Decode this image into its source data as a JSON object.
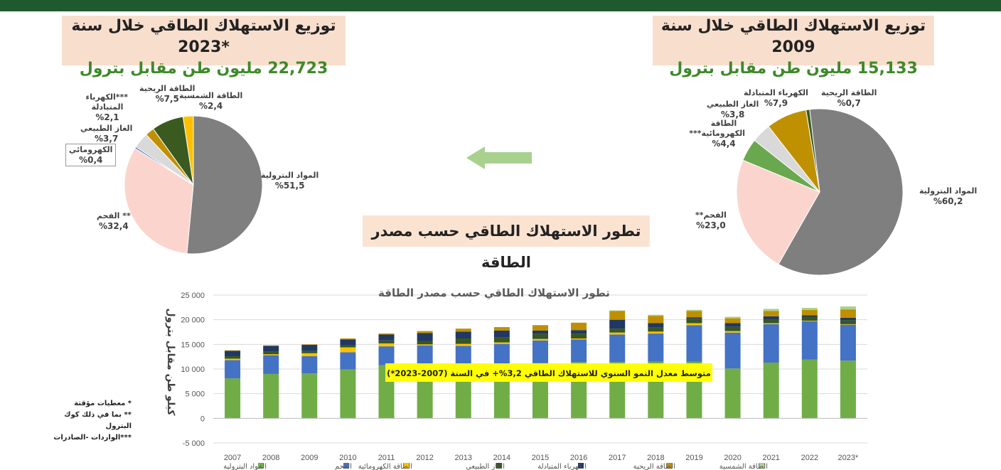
{
  "header": {
    "box_2023": {
      "line1": "توزيع الاستهلاك الطاقي خلال سنة *2023",
      "line2": "22,723 مليون طن مقابل بترول"
    },
    "box_2009": {
      "line1": "توزيع الاستهلاك الطاقي خلال سنة 2009",
      "line2": "15,133 مليون طن مقابل بترول"
    },
    "main_title": "تطور الاستهلاك الطاقي حسب مصدر الطاقة"
  },
  "notes": [
    "* معطيات مؤقتة",
    "** بما في ذلك كوك البترول",
    "***الواردات -الصادرات"
  ],
  "colors": {
    "petroleum": "#70ad47",
    "coal": "#4472c4",
    "hydro": "#ffc000",
    "gas": "#375623",
    "electricity": "#203864",
    "wind": "#bf8f00",
    "solar": "#a9d18e",
    "arrow": "#a9d18e",
    "pie_petroleum": "#7f7f7f",
    "pie_coal": "#fbd5cd",
    "pie_hydro": "#4472c4",
    "pie_gas": "#d9d9d9",
    "pie_electricity": "#bf9000",
    "pie_wind": "#3a5a1f",
    "pie_solar": "#ffc000",
    "pie_2009_hydro": "#6aa84f"
  },
  "chart_data": [
    {
      "type": "pie",
      "title": "توزيع الاستهلاك الطاقي خلال سنة *2023",
      "slices": [
        {
          "label": "المواد البترولية",
          "value": 51.5,
          "value_label": "%51,5"
        },
        {
          "label": "** الفحم",
          "value": 32.4,
          "value_label": "%32,4"
        },
        {
          "label": "الكهرومائي",
          "value": 0.4,
          "value_label": "%0,4"
        },
        {
          "label": "الغاز الطبيعي",
          "value": 3.7,
          "value_label": "%3,7"
        },
        {
          "label": "***الكهرباء المتبادلة",
          "value": 2.1,
          "value_label": "%2,1"
        },
        {
          "label": "الطاقة الريحية",
          "value": 7.5,
          "value_label": "%7,5"
        },
        {
          "label": "الطاقة الشمسية",
          "value": 2.4,
          "value_label": "%2,4"
        }
      ]
    },
    {
      "type": "pie",
      "title": "توزيع الاستهلاك الطاقي خلال سنة 2009",
      "slices": [
        {
          "label": "المواد البترولية",
          "value": 60.2,
          "value_label": "%60,2"
        },
        {
          "label": "الفحم**",
          "value": 23.0,
          "value_label": "%23,0"
        },
        {
          "label": "الطاقة الكهرومائية***",
          "value": 4.4,
          "value_label": "%4,4"
        },
        {
          "label": "الغاز الطبيعي",
          "value": 3.8,
          "value_label": "%3,8"
        },
        {
          "label": "الكهرباء المتبادلة",
          "value": 7.9,
          "value_label": "%7,9"
        },
        {
          "label": "الطاقة الريحية",
          "value": 0.7,
          "value_label": "%0,7"
        }
      ]
    },
    {
      "type": "bar",
      "stacked": true,
      "title": "تطور الاستهلاك الطاقي حسب مصدر الطاقة",
      "ylabel": "كيلو طن مقابل بترول",
      "ylim": [
        -5000,
        25000
      ],
      "yticks": [
        "-5 000",
        "0",
        "5 000",
        "10 000",
        "15 000",
        "20 000",
        "25 000"
      ],
      "ytick_values": [
        -5000,
        0,
        5000,
        10000,
        15000,
        20000,
        25000
      ],
      "grid": true,
      "legend": "bottom",
      "annotation": "متوسط معدل النمو السنوي للاستهلاك الطاقي 3,2%+ في السنة (2007-2023*)",
      "categories": [
        "2007",
        "2008",
        "2009",
        "2010",
        "2011",
        "2012",
        "2013",
        "2014",
        "2015",
        "2016",
        "2017",
        "2018",
        "2019",
        "2020",
        "2021",
        "2022",
        "2023*"
      ],
      "series": [
        {
          "name": "المواد البترولية",
          "values": [
            8100,
            9000,
            9100,
            9900,
            10800,
            10600,
            10600,
            10800,
            11200,
            11400,
            11400,
            11500,
            11500,
            10100,
            11300,
            11900,
            11700
          ]
        },
        {
          "name": "الفحم",
          "values": [
            3700,
            3800,
            3500,
            3500,
            3800,
            4200,
            4100,
            4300,
            4600,
            4600,
            5600,
            5700,
            7400,
            7300,
            7800,
            7800,
            7300
          ]
        },
        {
          "name": "الطاقة الكهرومائية",
          "values": [
            300,
            200,
            600,
            1000,
            600,
            200,
            400,
            300,
            300,
            200,
            400,
            400,
            400,
            300,
            200,
            100,
            100
          ]
        },
        {
          "name": "الغاز الطبيعي",
          "values": [
            500,
            500,
            500,
            500,
            600,
            700,
            1100,
            1000,
            1000,
            1000,
            800,
            900,
            900,
            900,
            800,
            800,
            800
          ]
        },
        {
          "name": "الكهرباء المتبادلة",
          "values": [
            1100,
            1200,
            1200,
            1100,
            1200,
            1600,
            1400,
            1400,
            700,
            700,
            1800,
            800,
            300,
            700,
            600,
            300,
            500
          ]
        },
        {
          "name": "الطاقة الريحية",
          "values": [
            100,
            100,
            100,
            200,
            200,
            400,
            600,
            700,
            1100,
            1500,
            1800,
            1500,
            1300,
            1000,
            1100,
            1100,
            1700
          ]
        },
        {
          "name": "الطاقة الشمسية",
          "values": [
            0,
            0,
            0,
            0,
            0,
            0,
            0,
            0,
            0,
            0,
            100,
            200,
            200,
            300,
            400,
            400,
            600
          ]
        }
      ]
    }
  ]
}
